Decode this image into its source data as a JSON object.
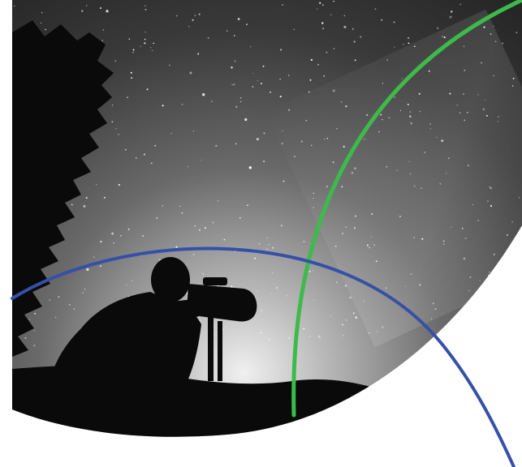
{
  "image": {
    "subject": "silhouetted-photographer-with-telephoto-lens-under-starry-night-sky",
    "style": "monochrome-photo-with-curved-crop",
    "has_visible_text": false
  },
  "colors": {
    "background": "#ffffff",
    "sky_top": "#2b2b2b",
    "sky_mid": "#5a5a5a",
    "horizon_glow": "#e9e9e9",
    "silhouette": "#0a0a0a",
    "stars": "#ffffff",
    "arc_green": "#3dbb4a",
    "arc_blue": "#3550a8"
  },
  "decorations": {
    "arcs": [
      "green-arc",
      "blue-arc"
    ]
  }
}
